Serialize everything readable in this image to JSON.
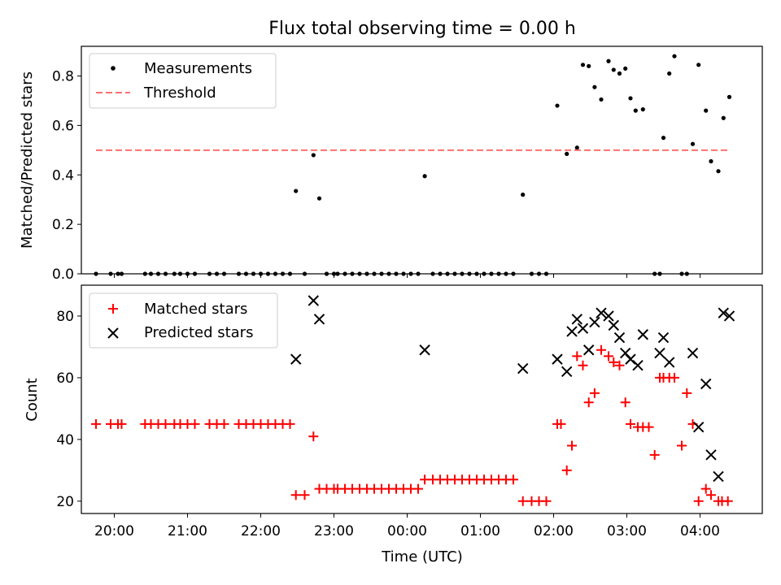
{
  "figure_title": "Flux total observing time = 0.00 h",
  "colors": {
    "measurement": "#000000",
    "threshold": "#ff7070",
    "matched": "#ff0000",
    "predicted": "#000000"
  },
  "x_tick_labels": [
    "20:00",
    "21:00",
    "22:00",
    "23:00",
    "00:00",
    "01:00",
    "02:00",
    "03:00",
    "04:00"
  ],
  "chart_data": [
    {
      "type": "scatter",
      "title": "Flux total observing time = 0.00 h",
      "xlabel": "",
      "ylabel": "Matched/Predicted stars",
      "x_unit": "hours since 20:00 UTC",
      "xlim": [
        -0.45,
        8.85
      ],
      "ylim": [
        0,
        0.92
      ],
      "y_ticks": [
        "0.0",
        "0.2",
        "0.4",
        "0.6",
        "0.8"
      ],
      "y_tick_values": [
        0,
        0.2,
        0.4,
        0.6,
        0.8
      ],
      "grid": false,
      "legend": {
        "placement": "upper-left",
        "entries": [
          "Measurements",
          "Threshold"
        ]
      },
      "series": [
        {
          "name": "Measurements",
          "marker": "dot",
          "x": [
            -0.25,
            -0.05,
            0.05,
            0.1,
            0.42,
            0.5,
            0.6,
            0.7,
            0.82,
            0.9,
            1.0,
            1.1,
            1.3,
            1.4,
            1.5,
            1.7,
            1.8,
            1.9,
            2.0,
            2.1,
            2.2,
            2.3,
            2.4,
            2.48,
            2.6,
            2.72,
            2.8,
            2.9,
            3.0,
            3.05,
            3.15,
            3.25,
            3.35,
            3.45,
            3.55,
            3.65,
            3.75,
            3.85,
            3.95,
            4.05,
            4.15,
            4.24,
            4.35,
            4.45,
            4.55,
            4.65,
            4.75,
            4.85,
            4.95,
            5.05,
            5.15,
            5.25,
            5.35,
            5.45,
            5.58,
            5.7,
            5.8,
            5.9,
            6.05,
            6.18,
            6.32,
            6.4,
            6.48,
            6.56,
            6.65,
            6.75,
            6.82,
            6.9,
            6.98,
            7.05,
            7.12,
            7.22,
            7.38,
            7.45,
            7.5,
            7.58,
            7.65,
            7.75,
            7.82,
            7.9,
            7.98,
            8.08,
            8.15,
            8.25,
            8.32,
            8.4
          ],
          "y": [
            0,
            0,
            0,
            0,
            0,
            0,
            0,
            0,
            0,
            0,
            0,
            0,
            0,
            0,
            0,
            0,
            0,
            0,
            0,
            0,
            0,
            0,
            0,
            0.335,
            0,
            0.48,
            0.305,
            0,
            0,
            0,
            0,
            0,
            0,
            0,
            0,
            0,
            0,
            0,
            0,
            0,
            0,
            0.395,
            0,
            0,
            0,
            0,
            0,
            0,
            0,
            0,
            0,
            0,
            0,
            0,
            0.32,
            0,
            0,
            0,
            0.68,
            0.485,
            0.51,
            0.845,
            0.84,
            0.755,
            0.705,
            0.86,
            0.825,
            0.81,
            0.83,
            0.71,
            0.66,
            0.665,
            0,
            0,
            0.55,
            0.81,
            0.88,
            0,
            0,
            0.525,
            0.845,
            0.66,
            0.455,
            0.415,
            0.63,
            0.715
          ]
        },
        {
          "name": "Threshold",
          "style": "dashed",
          "x": [
            -0.25,
            8.4
          ],
          "y": [
            0.5,
            0.5
          ]
        }
      ]
    },
    {
      "type": "scatter",
      "title": "",
      "xlabel": "Time (UTC)",
      "ylabel": "Count",
      "x_unit": "hours since 20:00 UTC",
      "xlim": [
        -0.45,
        8.85
      ],
      "ylim": [
        16,
        90
      ],
      "y_ticks": [
        "20",
        "40",
        "60",
        "80"
      ],
      "y_tick_values": [
        20,
        40,
        60,
        80
      ],
      "grid": false,
      "legend": {
        "placement": "upper-left",
        "entries": [
          "Matched stars",
          "Predicted stars"
        ]
      },
      "series": [
        {
          "name": "Matched stars",
          "marker": "plus",
          "x": [
            -0.25,
            -0.05,
            0.05,
            0.1,
            0.42,
            0.5,
            0.6,
            0.7,
            0.82,
            0.9,
            1.0,
            1.1,
            1.3,
            1.4,
            1.5,
            1.7,
            1.8,
            1.9,
            2.0,
            2.1,
            2.2,
            2.3,
            2.4,
            2.48,
            2.6,
            2.72,
            2.8,
            2.9,
            3.0,
            3.05,
            3.15,
            3.25,
            3.35,
            3.45,
            3.55,
            3.65,
            3.75,
            3.85,
            3.95,
            4.05,
            4.15,
            4.24,
            4.35,
            4.45,
            4.55,
            4.65,
            4.75,
            4.85,
            4.95,
            5.05,
            5.15,
            5.25,
            5.35,
            5.45,
            5.58,
            5.7,
            5.8,
            5.9,
            6.05,
            6.1,
            6.18,
            6.25,
            6.32,
            6.4,
            6.48,
            6.56,
            6.65,
            6.75,
            6.82,
            6.9,
            6.98,
            7.05,
            7.15,
            7.22,
            7.3,
            7.38,
            7.45,
            7.5,
            7.58,
            7.65,
            7.75,
            7.82,
            7.9,
            7.98,
            8.08,
            8.15,
            8.25,
            8.3,
            8.38
          ],
          "y": [
            45,
            45,
            45,
            45,
            45,
            45,
            45,
            45,
            45,
            45,
            45,
            45,
            45,
            45,
            45,
            45,
            45,
            45,
            45,
            45,
            45,
            45,
            45,
            22,
            22,
            41,
            24,
            24,
            24,
            24,
            24,
            24,
            24,
            24,
            24,
            24,
            24,
            24,
            24,
            24,
            24,
            27,
            27,
            27,
            27,
            27,
            27,
            27,
            27,
            27,
            27,
            27,
            27,
            27,
            20,
            20,
            20,
            20,
            45,
            45,
            30,
            38,
            67,
            64,
            52,
            55,
            69,
            67,
            65,
            64,
            52,
            45,
            44,
            44,
            44,
            35,
            60,
            60,
            60,
            60,
            38,
            55,
            45,
            20,
            24,
            22,
            20,
            20,
            20
          ]
        },
        {
          "name": "Predicted stars",
          "marker": "x",
          "x": [
            2.48,
            2.72,
            2.8,
            4.24,
            5.58,
            6.05,
            6.18,
            6.25,
            6.32,
            6.4,
            6.48,
            6.56,
            6.65,
            6.75,
            6.82,
            6.9,
            6.98,
            7.05,
            7.15,
            7.22,
            7.45,
            7.5,
            7.58,
            7.9,
            7.98,
            8.08,
            8.15,
            8.25,
            8.32,
            8.4
          ],
          "y": [
            66,
            85,
            79,
            69,
            63,
            66,
            62,
            75,
            79,
            76,
            69,
            78,
            81,
            80,
            77,
            73,
            68,
            66,
            64,
            74,
            68,
            73,
            65,
            68,
            44,
            58,
            35,
            28,
            81,
            80
          ]
        }
      ]
    }
  ]
}
